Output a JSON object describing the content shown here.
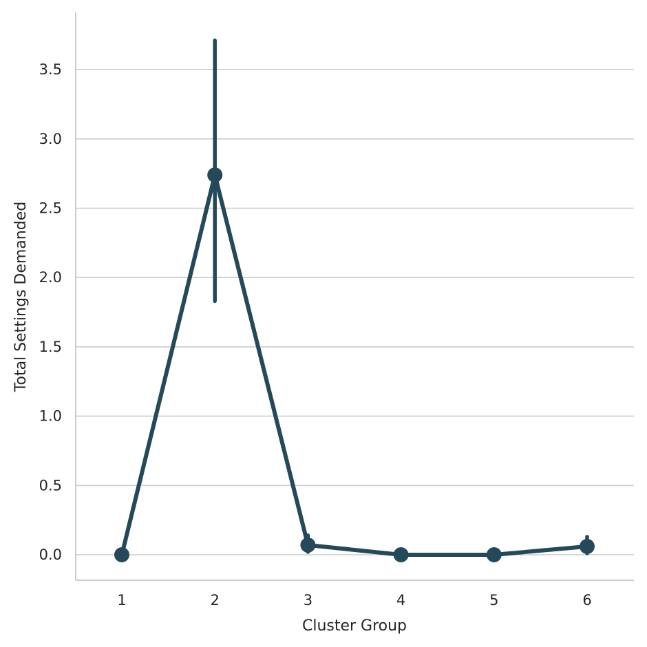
{
  "colors": {
    "series": "#24495a",
    "grid": "#cccccc",
    "text": "#262626",
    "background": "#ffffff"
  },
  "chart_data": {
    "type": "line",
    "title": "",
    "xlabel": "Cluster Group",
    "ylabel": "Total Settings Demanded",
    "categories": [
      "1",
      "2",
      "3",
      "4",
      "5",
      "6"
    ],
    "series": [
      {
        "values": [
          0.0,
          2.74,
          0.07,
          0.0,
          0.0,
          0.06
        ],
        "error_low": [
          0.0,
          1.83,
          0.02,
          0.0,
          0.0,
          0.01
        ],
        "error_high": [
          0.0,
          3.71,
          0.14,
          0.0,
          0.0,
          0.13
        ]
      }
    ],
    "ylim": [
      -0.18,
      3.91
    ],
    "yticks": [
      0.0,
      0.5,
      1.0,
      1.5,
      2.0,
      2.5,
      3.0,
      3.5
    ],
    "ytick_labels": [
      "0.0",
      "0.5",
      "1.0",
      "1.5",
      "2.0",
      "2.5",
      "3.0",
      "3.5"
    ],
    "grid": "horizontal",
    "legend": "none"
  }
}
